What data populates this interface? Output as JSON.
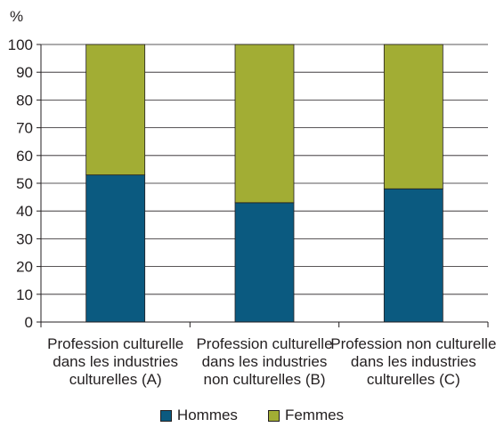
{
  "chart_data": {
    "type": "bar",
    "stacked": true,
    "ylabel": "%",
    "ylim": [
      0,
      100
    ],
    "yticks": [
      0,
      10,
      20,
      30,
      40,
      50,
      60,
      70,
      80,
      90,
      100
    ],
    "grid": true,
    "legend_position": "bottom",
    "categories": [
      [
        "Profession culturelle",
        "dans les industries",
        "culturelles (A)"
      ],
      [
        "Profession culturelle",
        "dans les industries",
        "non culturelles (B)"
      ],
      [
        "Profession non culturelle",
        "dans les industries",
        "culturelles (C)"
      ]
    ],
    "series": [
      {
        "name": "Hommes",
        "color": "#0b5a80",
        "values": [
          53,
          43,
          48
        ]
      },
      {
        "name": "Femmes",
        "color": "#a2ad34",
        "values": [
          47,
          57,
          52
        ]
      }
    ]
  }
}
